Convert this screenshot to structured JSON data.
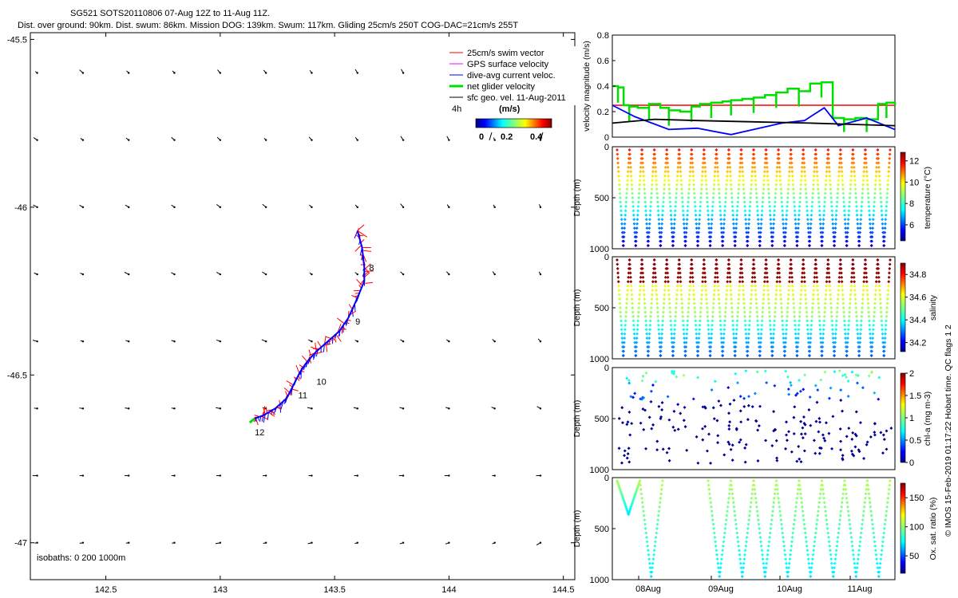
{
  "header": {
    "line1": "SG521 SOTS20110806 07-Aug 12Z to 11-Aug 11Z.",
    "line2": "Dist. over ground: 90km. Dist. swum: 86km. Mission DOG: 139km. Swum: 117km. Gliding 25cm/s 250T COG-DAC=21cm/s 255T"
  },
  "side_label": "© IMOS 15-Feb-2019 01:17:22 Hobart time. QC flags 1  2",
  "colors": {
    "swim": "#ff0000",
    "gps": "#ff00ff",
    "dac": "#0000ff",
    "net": "#00e000",
    "geo": "#000000"
  },
  "chart_data": [
    {
      "type": "scatter",
      "name": "map",
      "x_ticks": [
        "142.5",
        "143",
        "143.5",
        "144",
        "144.5"
      ],
      "y_ticks": [
        "-45.5",
        "-46",
        "-46.5",
        "-47"
      ],
      "xlim": [
        142.17,
        144.55
      ],
      "ylim": [
        -47.11,
        -45.48
      ],
      "track": [
        [
          143.6,
          -46.07
        ],
        [
          143.62,
          -46.12
        ],
        [
          143.63,
          -46.18
        ],
        [
          143.63,
          -46.22
        ],
        [
          143.6,
          -46.27
        ],
        [
          143.56,
          -46.33
        ],
        [
          143.52,
          -46.37
        ],
        [
          143.47,
          -46.4
        ],
        [
          143.42,
          -46.43
        ],
        [
          143.38,
          -46.46
        ],
        [
          143.35,
          -46.49
        ],
        [
          143.32,
          -46.53
        ],
        [
          143.29,
          -46.57
        ],
        [
          143.24,
          -46.6
        ],
        [
          143.19,
          -46.62
        ],
        [
          143.15,
          -46.63
        ]
      ],
      "day_labels": [
        {
          "text": "8",
          "lon": 143.63,
          "lat": -46.18
        },
        {
          "text": "9",
          "lon": 143.57,
          "lat": -46.34
        },
        {
          "text": "10",
          "lon": 143.4,
          "lat": -46.52
        },
        {
          "text": "11",
          "lon": 143.32,
          "lat": -46.56
        },
        {
          "text": "12",
          "lon": 143.13,
          "lat": -46.67
        }
      ],
      "vector_grid": {
        "lons": [
          142.2,
          142.4,
          142.6,
          142.8,
          143.0,
          143.2,
          143.4,
          143.6,
          143.8,
          144.0,
          144.2,
          144.4
        ],
        "lats": [
          -45.6,
          -45.8,
          -46.0,
          -46.2,
          -46.4,
          -46.6,
          -46.8,
          -47.0
        ]
      },
      "legend": {
        "items": [
          "25cm/s swim vector",
          "GPS surface velocity",
          "dive-avg current veloc.",
          "net glider velocity",
          "sfc geo. vel. 11-Aug-2011"
        ],
        "time_step": "4h",
        "unit": "(m/s)",
        "scale_ticks": [
          "0",
          "0.2",
          "0.4"
        ],
        "position": "top-right"
      },
      "isobaths_label": "isobaths: 0   200  1000m"
    },
    {
      "type": "line",
      "name": "velocity",
      "ylabel": "velocity magnitude (m/s)",
      "ylim": [
        0,
        0.8
      ],
      "y_ticks": [
        "0",
        "0.2",
        "0.4",
        "0.6",
        "0.8"
      ],
      "series": [
        {
          "name": "swim",
          "color": "#ff0000",
          "x": [
            0,
            1
          ],
          "y": [
            0.25,
            0.25
          ]
        },
        {
          "name": "net glider velocity",
          "color": "#00e000",
          "x": [
            0.0,
            0.02,
            0.04,
            0.06,
            0.09,
            0.13,
            0.17,
            0.2,
            0.24,
            0.28,
            0.31,
            0.35,
            0.39,
            0.42,
            0.46,
            0.5,
            0.54,
            0.58,
            0.62,
            0.66,
            0.7,
            0.74,
            0.78,
            0.82,
            0.86,
            0.9,
            0.94,
            0.97,
            1.0
          ],
          "y": [
            0.4,
            0.39,
            0.25,
            0.24,
            0.23,
            0.26,
            0.23,
            0.21,
            0.2,
            0.24,
            0.26,
            0.27,
            0.28,
            0.29,
            0.3,
            0.31,
            0.33,
            0.35,
            0.38,
            0.36,
            0.42,
            0.43,
            0.15,
            0.14,
            0.15,
            0.14,
            0.26,
            0.27,
            0.25
          ]
        },
        {
          "name": "dive-avg current veloc.",
          "color": "#0000ff",
          "x": [
            0,
            0.08,
            0.2,
            0.3,
            0.42,
            0.5,
            0.6,
            0.68,
            0.75,
            0.8,
            0.9,
            1.0
          ],
          "y": [
            0.25,
            0.16,
            0.06,
            0.07,
            0.02,
            0.06,
            0.11,
            0.13,
            0.23,
            0.09,
            0.15,
            0.06
          ]
        },
        {
          "name": "sfc geo. vel.",
          "color": "#000000",
          "x": [
            0,
            0.15,
            0.3,
            0.5,
            0.7,
            0.85,
            1.0
          ],
          "y": [
            0.11,
            0.14,
            0.13,
            0.12,
            0.11,
            0.1,
            0.09
          ]
        }
      ]
    },
    {
      "type": "scatter",
      "name": "temperature",
      "ylabel": "Depth (m)",
      "clabel": "temperature (°C)",
      "y_ticks": [
        "0",
        "500",
        "1000"
      ],
      "c_ticks": [
        "6",
        "8",
        "10",
        "12"
      ],
      "crange": [
        4.5,
        12.8
      ]
    },
    {
      "type": "scatter",
      "name": "salinity",
      "ylabel": "Depth (m)",
      "clabel": "salinity",
      "y_ticks": [
        "0",
        "500",
        "1000"
      ],
      "c_ticks": [
        "34.2",
        "34.4",
        "34.6",
        "34.8"
      ],
      "crange": [
        34.12,
        34.9
      ]
    },
    {
      "type": "scatter",
      "name": "chla",
      "ylabel": "Depth (m)",
      "clabel": "chl-a (mg m-3)",
      "y_ticks": [
        "0",
        "500",
        "1000"
      ],
      "c_ticks": [
        "0",
        "0.5",
        "1",
        "1.5",
        "2"
      ],
      "crange": [
        0,
        2
      ]
    },
    {
      "type": "scatter",
      "name": "oxygen",
      "ylabel": "Depth (m)",
      "clabel": "Ox. sat. ratio (%)",
      "y_ticks": [
        "0",
        "500",
        "1000"
      ],
      "c_ticks": [
        "50",
        "100",
        "150"
      ],
      "crange": [
        20,
        175
      ],
      "x_ticks": [
        "08Aug",
        "09Aug",
        "10Aug",
        "11Aug"
      ]
    }
  ]
}
